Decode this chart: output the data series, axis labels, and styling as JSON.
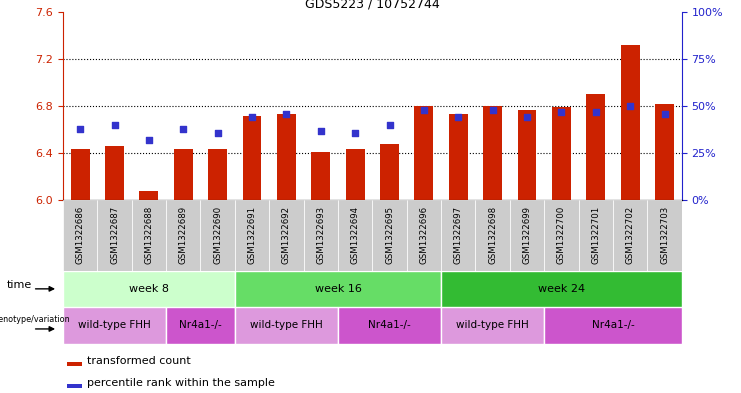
{
  "title": "GDS5223 / 10752744",
  "samples": [
    "GSM1322686",
    "GSM1322687",
    "GSM1322688",
    "GSM1322689",
    "GSM1322690",
    "GSM1322691",
    "GSM1322692",
    "GSM1322693",
    "GSM1322694",
    "GSM1322695",
    "GSM1322696",
    "GSM1322697",
    "GSM1322698",
    "GSM1322699",
    "GSM1322700",
    "GSM1322701",
    "GSM1322702",
    "GSM1322703"
  ],
  "red_values": [
    6.44,
    6.46,
    6.08,
    6.44,
    6.44,
    6.72,
    6.73,
    6.41,
    6.44,
    6.48,
    6.8,
    6.73,
    6.8,
    6.77,
    6.79,
    6.9,
    7.32,
    6.82
  ],
  "blue_values": [
    38,
    40,
    32,
    38,
    36,
    44,
    46,
    37,
    36,
    40,
    48,
    44,
    48,
    44,
    47,
    47,
    50,
    46
  ],
  "ylim_left": [
    6.0,
    7.6
  ],
  "ylim_right": [
    0,
    100
  ],
  "yticks_left": [
    6.0,
    6.4,
    6.8,
    7.2,
    7.6
  ],
  "yticks_right": [
    0,
    25,
    50,
    75,
    100
  ],
  "hlines": [
    6.4,
    6.8,
    7.2
  ],
  "bar_color": "#CC2200",
  "dot_color": "#3333CC",
  "time_groups": [
    {
      "label": "week 8",
      "start": 0,
      "end": 5,
      "color": "#ccffcc"
    },
    {
      "label": "week 16",
      "start": 5,
      "end": 11,
      "color": "#66dd66"
    },
    {
      "label": "week 24",
      "start": 11,
      "end": 18,
      "color": "#33bb33"
    }
  ],
  "genotype_groups": [
    {
      "label": "wild-type FHH",
      "start": 0,
      "end": 3,
      "color": "#dd99dd"
    },
    {
      "label": "Nr4a1-/-",
      "start": 3,
      "end": 5,
      "color": "#cc55cc"
    },
    {
      "label": "wild-type FHH",
      "start": 5,
      "end": 8,
      "color": "#dd99dd"
    },
    {
      "label": "Nr4a1-/-",
      "start": 8,
      "end": 11,
      "color": "#cc55cc"
    },
    {
      "label": "wild-type FHH",
      "start": 11,
      "end": 14,
      "color": "#dd99dd"
    },
    {
      "label": "Nr4a1-/-",
      "start": 14,
      "end": 18,
      "color": "#cc55cc"
    }
  ],
  "legend_red": "transformed count",
  "legend_blue": "percentile rank within the sample",
  "xlabel_time": "time",
  "xlabel_genotype": "genotype/variation",
  "tick_color_left": "#CC2200",
  "tick_color_right": "#2222CC",
  "sample_bg_color": "#cccccc",
  "bar_width": 0.55
}
